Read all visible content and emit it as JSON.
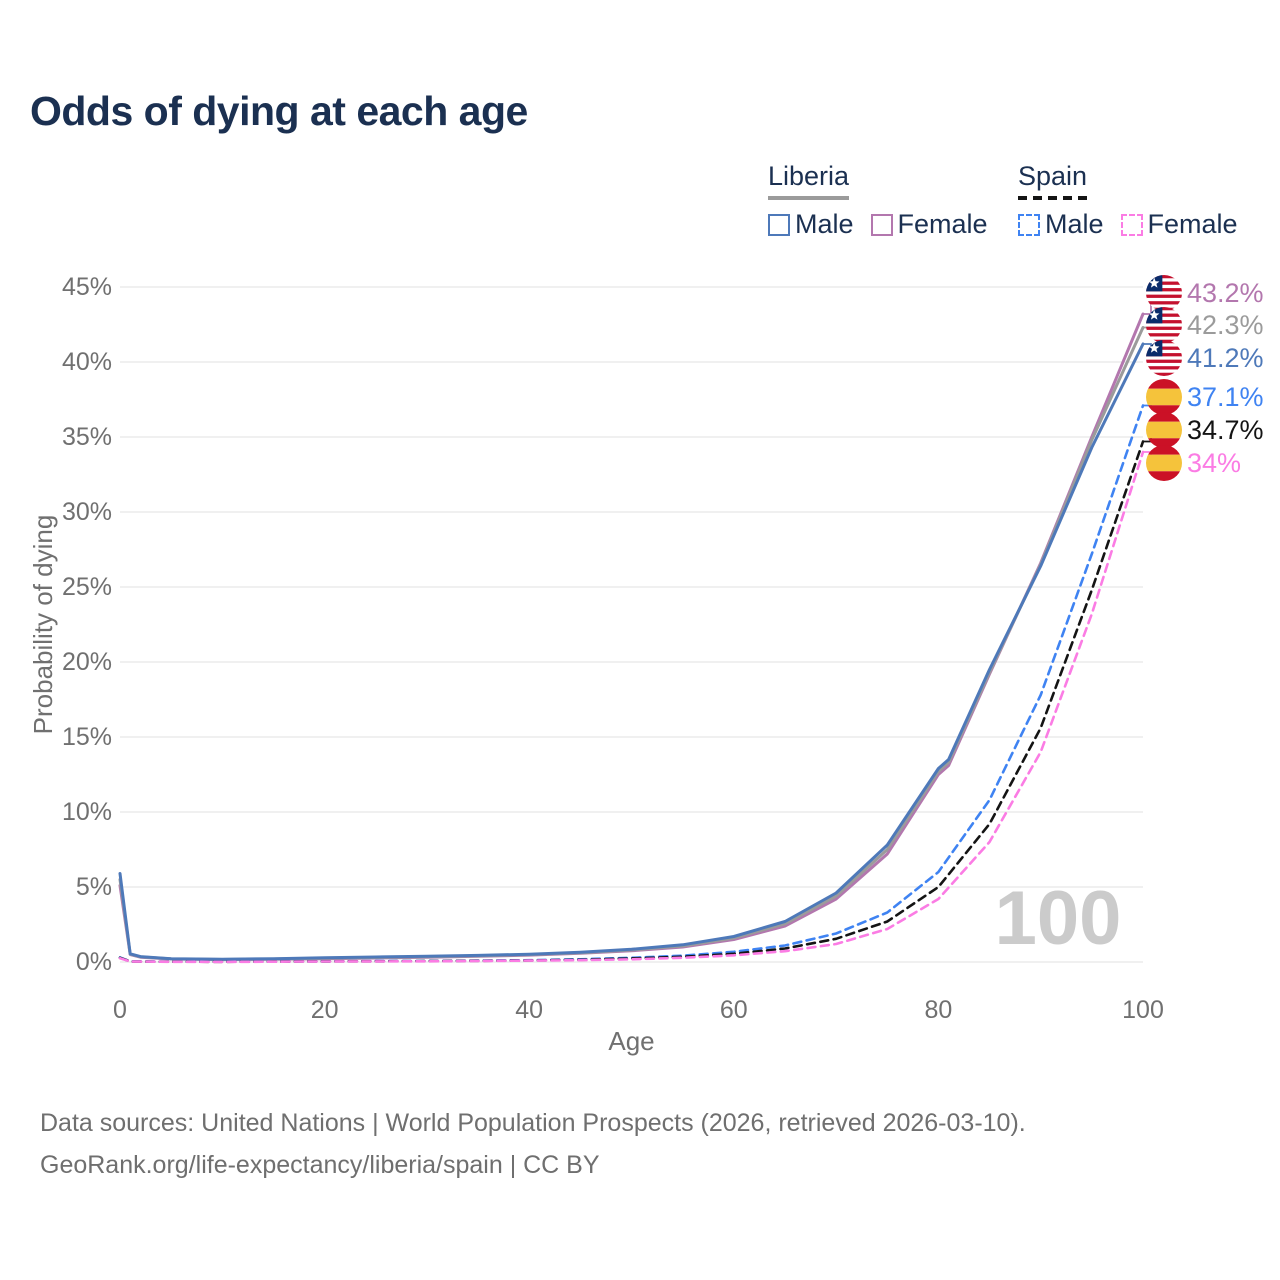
{
  "title": "Odds of dying at each age",
  "legend": {
    "groups": [
      {
        "country": "Liberia",
        "underline_style": "solid",
        "underline_color": "#9B9B9B",
        "items": [
          {
            "label": "Male",
            "color": "#4E79B9",
            "dashed": false
          },
          {
            "label": "Female",
            "color": "#B377AE",
            "dashed": false
          }
        ]
      },
      {
        "country": "Spain",
        "underline_style": "dashed",
        "underline_color": "#141414",
        "items": [
          {
            "label": "Male",
            "color": "#3F83F2",
            "dashed": true
          },
          {
            "label": "Female",
            "color": "#FB7CE4",
            "dashed": true
          }
        ]
      }
    ]
  },
  "watermark": "100",
  "footer": {
    "line1": "Data sources: United Nations | World Population Prospects (2026, retrieved 2026-03-10).",
    "line2": "GeoRank.org/life-expectancy/liberia/spain | CC BY"
  },
  "flags": {
    "liberia": {
      "red": "#C4112E",
      "blue": "#0A2C6B",
      "white": "#FFFFFF"
    },
    "spain": {
      "red": "#CB1126",
      "yellow": "#F5C33B"
    }
  },
  "colors": {
    "title_text": "#1B3051",
    "axis_text": "#707070",
    "gridline": "#EBEBEB",
    "watermark": "#CBCBCB",
    "footer_text": "#6F6F6F"
  },
  "chart_data": {
    "type": "line",
    "title": "Odds of dying at each age",
    "xlabel": "Age",
    "ylabel": "Probability of dying",
    "xlim": [
      0,
      100
    ],
    "ylim": [
      0,
      45
    ],
    "xticks": [
      0,
      20,
      40,
      60,
      80,
      100
    ],
    "yticks": [
      0,
      5,
      10,
      15,
      20,
      25,
      30,
      35,
      40,
      45
    ],
    "ytick_suffix": "%",
    "grid": "horizontal",
    "legend_position": "top-right",
    "series": [
      {
        "name": "Liberia Female",
        "country": "Liberia",
        "sex": "Female",
        "color": "#B377AE",
        "dash": "solid",
        "end_label": "43.2%",
        "flag": "liberia",
        "points": [
          [
            0,
            5.1
          ],
          [
            1,
            0.5
          ],
          [
            2,
            0.32
          ],
          [
            5,
            0.2
          ],
          [
            10,
            0.16
          ],
          [
            15,
            0.18
          ],
          [
            20,
            0.22
          ],
          [
            25,
            0.27
          ],
          [
            30,
            0.32
          ],
          [
            35,
            0.38
          ],
          [
            40,
            0.46
          ],
          [
            45,
            0.58
          ],
          [
            50,
            0.75
          ],
          [
            55,
            1.0
          ],
          [
            60,
            1.5
          ],
          [
            65,
            2.4
          ],
          [
            70,
            4.2
          ],
          [
            75,
            7.2
          ],
          [
            80,
            12.5
          ],
          [
            81,
            13.1
          ],
          [
            85,
            19.2
          ],
          [
            90,
            26.6
          ],
          [
            95,
            35.0
          ],
          [
            100,
            43.2
          ]
        ]
      },
      {
        "name": "Liberia Both sexes",
        "country": "Liberia",
        "sex": "Both",
        "color": "#9B9B9B",
        "dash": "solid",
        "end_label": "42.3%",
        "flag": "liberia",
        "points": [
          [
            0,
            5.5
          ],
          [
            1,
            0.52
          ],
          [
            2,
            0.34
          ],
          [
            5,
            0.21
          ],
          [
            10,
            0.17
          ],
          [
            15,
            0.2
          ],
          [
            20,
            0.25
          ],
          [
            25,
            0.3
          ],
          [
            30,
            0.35
          ],
          [
            35,
            0.41
          ],
          [
            40,
            0.49
          ],
          [
            45,
            0.61
          ],
          [
            50,
            0.8
          ],
          [
            55,
            1.07
          ],
          [
            60,
            1.6
          ],
          [
            65,
            2.55
          ],
          [
            70,
            4.4
          ],
          [
            75,
            7.5
          ],
          [
            80,
            12.7
          ],
          [
            81,
            13.3
          ],
          [
            85,
            19.3
          ],
          [
            90,
            26.5
          ],
          [
            95,
            34.8
          ],
          [
            100,
            42.3
          ]
        ]
      },
      {
        "name": "Liberia Male",
        "country": "Liberia",
        "sex": "Male",
        "color": "#4E79B9",
        "dash": "solid",
        "end_label": "41.2%",
        "flag": "liberia",
        "points": [
          [
            0,
            5.9
          ],
          [
            1,
            0.55
          ],
          [
            2,
            0.36
          ],
          [
            5,
            0.22
          ],
          [
            10,
            0.18
          ],
          [
            15,
            0.22
          ],
          [
            20,
            0.28
          ],
          [
            25,
            0.33
          ],
          [
            30,
            0.38
          ],
          [
            35,
            0.44
          ],
          [
            40,
            0.52
          ],
          [
            45,
            0.65
          ],
          [
            50,
            0.85
          ],
          [
            55,
            1.15
          ],
          [
            60,
            1.7
          ],
          [
            65,
            2.7
          ],
          [
            70,
            4.6
          ],
          [
            75,
            7.8
          ],
          [
            80,
            12.9
          ],
          [
            81,
            13.5
          ],
          [
            85,
            19.5
          ],
          [
            90,
            26.4
          ],
          [
            95,
            34.3
          ],
          [
            100,
            41.2
          ]
        ]
      },
      {
        "name": "Spain Male",
        "country": "Spain",
        "sex": "Male",
        "color": "#3F83F2",
        "dash": "dashed",
        "end_label": "37.1%",
        "flag": "spain",
        "points": [
          [
            0,
            0.3
          ],
          [
            1,
            0.04
          ],
          [
            5,
            0.02
          ],
          [
            10,
            0.02
          ],
          [
            15,
            0.03
          ],
          [
            20,
            0.05
          ],
          [
            25,
            0.06
          ],
          [
            30,
            0.07
          ],
          [
            35,
            0.09
          ],
          [
            40,
            0.12
          ],
          [
            45,
            0.18
          ],
          [
            50,
            0.28
          ],
          [
            55,
            0.42
          ],
          [
            60,
            0.68
          ],
          [
            65,
            1.1
          ],
          [
            70,
            1.9
          ],
          [
            75,
            3.3
          ],
          [
            80,
            6.0
          ],
          [
            85,
            10.8
          ],
          [
            90,
            17.8
          ],
          [
            95,
            27.2
          ],
          [
            100,
            37.1
          ]
        ]
      },
      {
        "name": "Spain Both sexes",
        "country": "Spain",
        "sex": "Both",
        "color": "#141414",
        "dash": "dashed",
        "end_label": "34.7%",
        "flag": "spain",
        "points": [
          [
            0,
            0.28
          ],
          [
            1,
            0.035
          ],
          [
            5,
            0.02
          ],
          [
            10,
            0.015
          ],
          [
            15,
            0.025
          ],
          [
            20,
            0.04
          ],
          [
            25,
            0.05
          ],
          [
            30,
            0.06
          ],
          [
            35,
            0.08
          ],
          [
            40,
            0.1
          ],
          [
            45,
            0.15
          ],
          [
            50,
            0.23
          ],
          [
            55,
            0.35
          ],
          [
            60,
            0.55
          ],
          [
            65,
            0.9
          ],
          [
            70,
            1.55
          ],
          [
            75,
            2.7
          ],
          [
            80,
            5.0
          ],
          [
            85,
            9.2
          ],
          [
            90,
            15.6
          ],
          [
            95,
            24.8
          ],
          [
            100,
            34.7
          ]
        ]
      },
      {
        "name": "Spain Female",
        "country": "Spain",
        "sex": "Female",
        "color": "#FB7CE4",
        "dash": "dashed",
        "end_label": "34%",
        "flag": "spain",
        "points": [
          [
            0,
            0.25
          ],
          [
            1,
            0.03
          ],
          [
            5,
            0.015
          ],
          [
            10,
            0.01
          ],
          [
            15,
            0.02
          ],
          [
            20,
            0.03
          ],
          [
            25,
            0.04
          ],
          [
            30,
            0.05
          ],
          [
            35,
            0.07
          ],
          [
            40,
            0.09
          ],
          [
            45,
            0.12
          ],
          [
            50,
            0.18
          ],
          [
            55,
            0.28
          ],
          [
            60,
            0.45
          ],
          [
            65,
            0.72
          ],
          [
            70,
            1.2
          ],
          [
            75,
            2.2
          ],
          [
            80,
            4.2
          ],
          [
            85,
            8.0
          ],
          [
            90,
            14.0
          ],
          [
            95,
            23.2
          ],
          [
            100,
            34.0
          ]
        ]
      }
    ]
  }
}
